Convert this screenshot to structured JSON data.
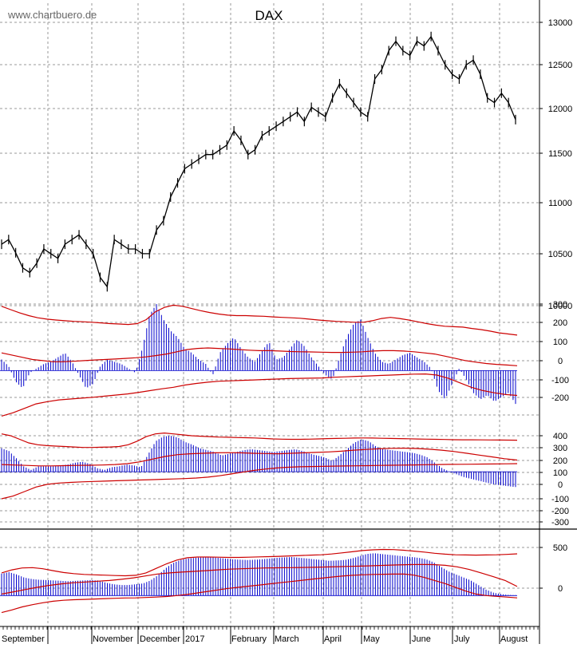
{
  "watermark": "www.chartbuero.de",
  "title": "DAX",
  "x_labels": [
    "September",
    "November",
    "December",
    "2017",
    "February",
    "March",
    "April",
    "May",
    "June",
    "July",
    "August"
  ],
  "colors": {
    "price": "#000000",
    "bars": "#0000cc",
    "bands": "#cc0000",
    "grid": "#999999",
    "background": "#ffffff"
  },
  "chart_data": [
    {
      "type": "line",
      "title": "DAX",
      "panel": "price",
      "ylim": [
        10000,
        13000
      ],
      "y_ticks": [
        "13000",
        "12500",
        "12000",
        "11500",
        "11000",
        "10500",
        "10000"
      ],
      "series": [
        {
          "values": [
            10650,
            10700,
            10560,
            10400,
            10350,
            10450,
            10600,
            10550,
            10500,
            10650,
            10700,
            10750,
            10650,
            10550,
            10300,
            10200,
            10700,
            10650,
            10600,
            10600,
            10550,
            10550,
            10800,
            10900,
            11150,
            11300,
            11450,
            11500,
            11550,
            11600,
            11600,
            11650,
            11700,
            11850,
            11750,
            11600,
            11650,
            11800,
            11850,
            11900,
            11950,
            12000,
            12050,
            11950,
            12100,
            12050,
            12000,
            12200,
            12350,
            12250,
            12150,
            12050,
            12000,
            12400,
            12500,
            12700,
            12800,
            12700,
            12650,
            12800,
            12750,
            12850,
            12700,
            12550,
            12450,
            12400,
            12550,
            12600,
            12450,
            12200,
            12150,
            12250,
            12150,
            11970
          ]
        }
      ]
    },
    {
      "type": "bar",
      "panel": "oscillator-1",
      "ylim": [
        -200,
        300
      ],
      "y_ticks": [
        "300",
        "200",
        "100",
        "0",
        "-100",
        "-200"
      ],
      "series": [
        {
          "values": [
            50,
            20,
            -50,
            -80,
            -10,
            10,
            30,
            40,
            60,
            80,
            40,
            -20,
            -80,
            -60,
            20,
            50,
            40,
            30,
            10,
            -10,
            100,
            250,
            300,
            230,
            180,
            150,
            100,
            80,
            50,
            30,
            -20,
            80,
            120,
            150,
            100,
            60,
            40,
            90,
            130,
            50,
            60,
            100,
            140,
            110,
            60,
            20,
            -20,
            -40,
            60,
            150,
            210,
            230,
            150,
            80,
            40,
            30,
            50,
            70,
            80,
            60,
            40,
            10,
            -90,
            -130,
            -60,
            10,
            -40,
            -100,
            -130,
            -110,
            -140,
            -120,
            -100,
            -150
          ]
        },
        {
          "values": [
            290,
            275,
            260,
            248,
            238,
            232,
            228,
            225,
            222,
            220,
            218,
            215,
            212,
            210,
            208,
            212,
            230,
            265,
            285,
            295,
            290,
            280,
            270,
            262,
            255,
            250,
            248,
            248,
            246,
            245,
            242,
            240,
            238,
            236,
            232,
            228,
            225,
            222,
            220,
            218,
            218,
            225,
            235,
            240,
            235,
            228,
            220,
            212,
            205,
            200,
            198,
            196,
            190,
            185,
            178,
            170,
            165,
            160
          ]
        },
        {
          "values": [
            80,
            70,
            60,
            50,
            45,
            40,
            40,
            42,
            45,
            48,
            50,
            52,
            55,
            58,
            62,
            68,
            75,
            85,
            95,
            100,
            102,
            100,
            98,
            95,
            92,
            90,
            90,
            88,
            86,
            85,
            84,
            83,
            82,
            82,
            83,
            85,
            88,
            90,
            90,
            88,
            85,
            80,
            75,
            65,
            55,
            45,
            38,
            32,
            28,
            25,
            22
          ]
        },
        {
          "values": [
            -205,
            -190,
            -170,
            -150,
            -140,
            -132,
            -128,
            -124,
            -120,
            -115,
            -110,
            -105,
            -98,
            -90,
            -82,
            -75,
            -65,
            -58,
            -52,
            -48,
            -46,
            -44,
            -42,
            -40,
            -38,
            -36,
            -35,
            -34,
            -33,
            -30,
            -28,
            -26,
            -24,
            -22,
            -20,
            -18,
            -16,
            -15,
            -20,
            -35,
            -55,
            -75,
            -90,
            -100,
            -108,
            -112
          ]
        }
      ]
    },
    {
      "type": "bar",
      "panel": "oscillator-2",
      "ylim": [
        -300,
        400
      ],
      "y_ticks": [
        "400",
        "300",
        "200",
        "100",
        "0",
        "-100",
        "-200",
        "-300"
      ],
      "series": [
        {
          "values": [
            260,
            230,
            150,
            60,
            20,
            60,
            60,
            60,
            70,
            80,
            100,
            110,
            90,
            40,
            20,
            50,
            60,
            80,
            70,
            50,
            200,
            340,
            390,
            400,
            380,
            330,
            300,
            260,
            240,
            220,
            180,
            200,
            220,
            240,
            250,
            240,
            230,
            220,
            230,
            240,
            250,
            230,
            200,
            180,
            160,
            120,
            180,
            250,
            320,
            360,
            340,
            280,
            250,
            240,
            230,
            220,
            210,
            190,
            160,
            100,
            40,
            0,
            -30,
            -60,
            -80,
            -100,
            -120,
            -140,
            -150,
            -160,
            -170
          ]
        },
        {
          "values": [
            420,
            400,
            360,
            320,
            300,
            290,
            285,
            280,
            275,
            270,
            270,
            272,
            275,
            280,
            300,
            340,
            390,
            420,
            430,
            420,
            410,
            400,
            395,
            390,
            385,
            383,
            380,
            378,
            375,
            370,
            365,
            362,
            360,
            360,
            362,
            365,
            368,
            370,
            372,
            374,
            375,
            374,
            372,
            370,
            368,
            366,
            364,
            362,
            360,
            358,
            356,
            355,
            355,
            354,
            353,
            352,
            351,
            350
          ]
        },
        {
          "values": [
            80,
            75,
            70,
            65,
            65,
            68,
            70,
            72,
            75,
            80,
            90,
            110,
            140,
            170,
            190,
            200,
            205,
            210,
            212,
            210,
            205,
            202,
            200,
            205,
            210,
            215,
            220,
            228,
            240,
            248,
            255,
            260,
            262,
            258,
            250,
            240,
            225,
            205,
            185,
            165,
            145,
            130
          ]
        },
        {
          "values": [
            -300,
            -270,
            -220,
            -170,
            -140,
            -125,
            -118,
            -112,
            -108,
            -104,
            -100,
            -96,
            -92,
            -88,
            -84,
            -80,
            -76,
            -70,
            -60,
            -45,
            -25,
            -5,
            15,
            30,
            42,
            50,
            55,
            58,
            60,
            62,
            64,
            66,
            68,
            70,
            72,
            74,
            76,
            78,
            80,
            82,
            83,
            84,
            85,
            86,
            88,
            90
          ]
        }
      ]
    },
    {
      "type": "bar",
      "panel": "oscillator-3",
      "ylim": [
        -250,
        700
      ],
      "y_ticks": [
        "500",
        "0"
      ],
      "series": [
        {
          "values": [
            290,
            310,
            280,
            240,
            220,
            210,
            205,
            200,
            195,
            190,
            195,
            200,
            205,
            200,
            170,
            150,
            140,
            140,
            150,
            160,
            200,
            270,
            360,
            430,
            470,
            490,
            500,
            505,
            510,
            500,
            490,
            480,
            475,
            470,
            475,
            480,
            490,
            500,
            505,
            510,
            500,
            490,
            480,
            470,
            460,
            465,
            470,
            490,
            520,
            550,
            560,
            550,
            540,
            530,
            520,
            510,
            500,
            480,
            440,
            380,
            320,
            280,
            240,
            200,
            140,
            80,
            40,
            20,
            10,
            5
          ]
        },
        {
          "values": [
            300,
            340,
            365,
            370,
            355,
            330,
            305,
            290,
            280,
            275,
            270,
            265,
            262,
            268,
            300,
            360,
            420,
            470,
            500,
            510,
            510,
            508,
            505,
            505,
            508,
            512,
            515,
            520,
            525,
            530,
            535,
            540,
            550,
            565,
            580,
            595,
            605,
            610,
            608,
            600,
            588,
            575,
            560,
            548,
            540,
            537,
            535,
            537,
            540,
            545,
            552
          ]
        },
        {
          "values": [
            20,
            50,
            80,
            110,
            135,
            155,
            170,
            180,
            190,
            200,
            215,
            235,
            260,
            285,
            300,
            310,
            320,
            330,
            340,
            350,
            355,
            360,
            365,
            368,
            370,
            372,
            374,
            378,
            382,
            386,
            390,
            395,
            400,
            405,
            410,
            412,
            410,
            400,
            380,
            345,
            300,
            250,
            200,
            120
          ]
        },
        {
          "values": [
            -225,
            -190,
            -150,
            -120,
            -95,
            -75,
            -62,
            -55,
            -50,
            -45,
            -40,
            -36,
            -32,
            -30,
            -25,
            -20,
            -12,
            0,
            15,
            35,
            55,
            75,
            95,
            110,
            125,
            140,
            155,
            170,
            185,
            200,
            215,
            230,
            245,
            258,
            268,
            275,
            280,
            282,
            284,
            285,
            270,
            240,
            200,
            160,
            110,
            60,
            20,
            0,
            -10,
            -20,
            -30
          ]
        }
      ]
    }
  ]
}
